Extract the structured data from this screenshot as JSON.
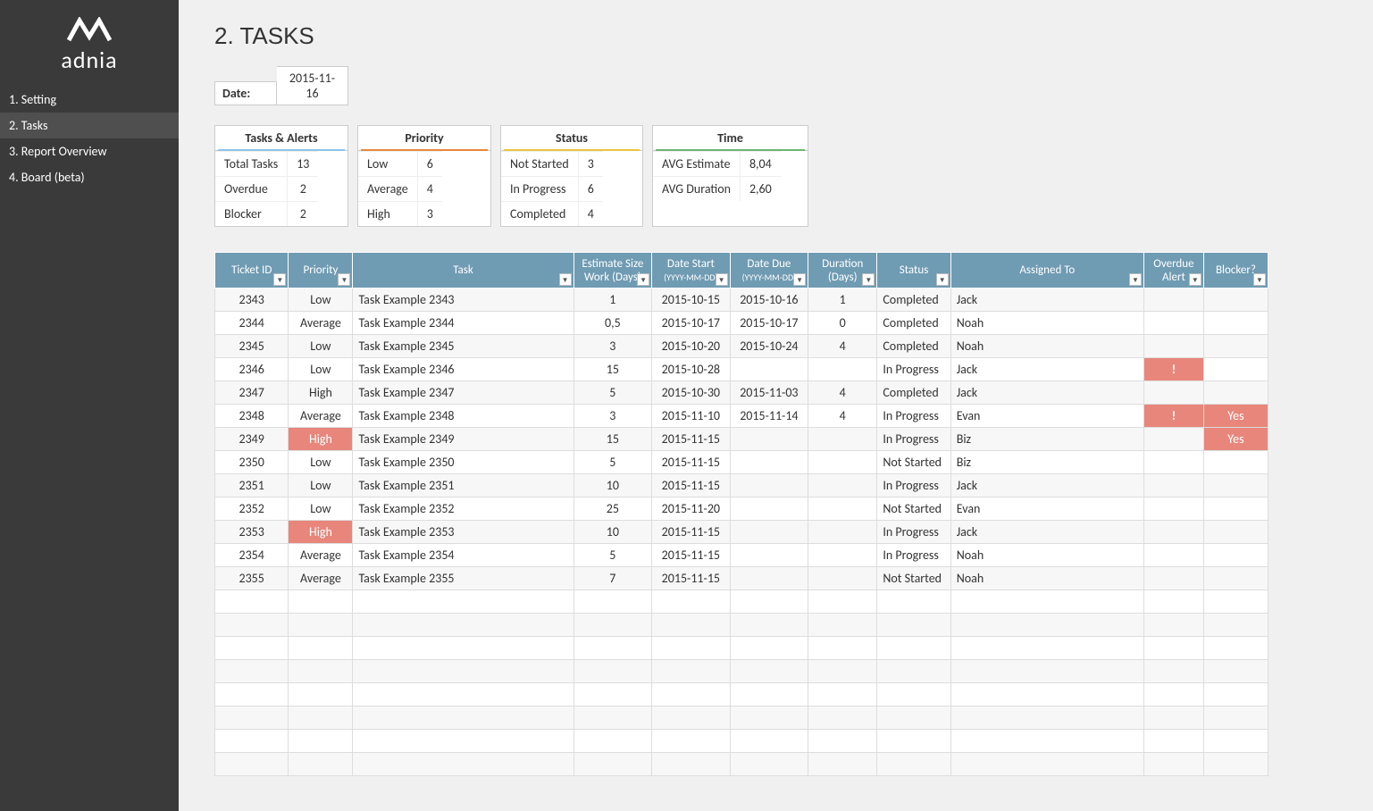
{
  "brand": {
    "mark": "⋈",
    "name": "adnia"
  },
  "nav": [
    {
      "label": "1. Setting",
      "active": false
    },
    {
      "label": "2. Tasks",
      "active": true
    },
    {
      "label": "3. Report Overview",
      "active": false
    },
    {
      "label": "4. Board (beta)",
      "active": false
    }
  ],
  "page_title": "2. TASKS",
  "date": {
    "label": "Date:",
    "value": "2015-11-16"
  },
  "summary": {
    "alerts": {
      "title": "Tasks & Alerts",
      "rows": [
        {
          "label": "Total Tasks",
          "value": "13"
        },
        {
          "label": "Overdue",
          "value": "2"
        },
        {
          "label": "Blocker",
          "value": "2"
        }
      ],
      "accent": "#8fc3e8"
    },
    "priority": {
      "title": "Priority",
      "rows": [
        {
          "label": "Low",
          "value": "6"
        },
        {
          "label": "Average",
          "value": "4"
        },
        {
          "label": "High",
          "value": "3"
        }
      ],
      "accent": "#e8873c"
    },
    "status": {
      "title": "Status",
      "rows": [
        {
          "label": "Not Started",
          "value": "3"
        },
        {
          "label": "In Progress",
          "value": "6"
        },
        {
          "label": "Completed",
          "value": "4"
        }
      ],
      "accent": "#e8c43c"
    },
    "time": {
      "title": "Time",
      "rows": [
        {
          "label": "AVG Estimate",
          "value": "8,04"
        },
        {
          "label": "AVG Duration",
          "value": "2,60"
        }
      ],
      "accent": "#6fb36f"
    }
  },
  "table": {
    "header_bg": "#6f9bb3",
    "highlight_bg": "#e8867c",
    "columns": [
      {
        "key": "ticket",
        "label": "Ticket ID",
        "sub": "",
        "cls": "col-ticket c-center"
      },
      {
        "key": "priority",
        "label": "Priority",
        "sub": "",
        "cls": "col-priority c-center"
      },
      {
        "key": "task",
        "label": "Task",
        "sub": "",
        "cls": "col-task c-left"
      },
      {
        "key": "est",
        "label": "Estimate Size Work (Days)",
        "sub": "",
        "cls": "col-est c-center"
      },
      {
        "key": "start",
        "label": "Date Start",
        "sub": "(YYYY-MM-DD)",
        "cls": "col-start c-center"
      },
      {
        "key": "due",
        "label": "Date Due",
        "sub": "(YYYY-MM-DD)",
        "cls": "col-due c-center"
      },
      {
        "key": "dur",
        "label": "Duration (Days)",
        "sub": "",
        "cls": "col-dur c-center"
      },
      {
        "key": "status",
        "label": "Status",
        "sub": "",
        "cls": "col-status c-left"
      },
      {
        "key": "assigned",
        "label": "Assigned To",
        "sub": "",
        "cls": "col-assigned c-left"
      },
      {
        "key": "overdue",
        "label": "Overdue Alert",
        "sub": "",
        "cls": "col-overdue c-center"
      },
      {
        "key": "blocker",
        "label": "Blocker?",
        "sub": "",
        "cls": "col-blocker c-center"
      }
    ],
    "rows": [
      {
        "ticket": "2343",
        "priority": "Low",
        "task": "Task Example 2343",
        "est": "1",
        "start": "2015-10-15",
        "due": "2015-10-16",
        "dur": "1",
        "status": "Completed",
        "assigned": "Jack",
        "overdue": "",
        "blocker": ""
      },
      {
        "ticket": "2344",
        "priority": "Average",
        "task": "Task Example 2344",
        "est": "0,5",
        "start": "2015-10-17",
        "due": "2015-10-17",
        "dur": "0",
        "status": "Completed",
        "assigned": "Noah",
        "overdue": "",
        "blocker": ""
      },
      {
        "ticket": "2345",
        "priority": "Low",
        "task": "Task Example 2345",
        "est": "3",
        "start": "2015-10-20",
        "due": "2015-10-24",
        "dur": "4",
        "status": "Completed",
        "assigned": "Noah",
        "overdue": "",
        "blocker": ""
      },
      {
        "ticket": "2346",
        "priority": "Low",
        "task": "Task Example 2346",
        "est": "15",
        "start": "2015-10-28",
        "due": "",
        "dur": "",
        "status": "In Progress",
        "assigned": "Jack",
        "overdue": "!",
        "blocker": ""
      },
      {
        "ticket": "2347",
        "priority": "High",
        "task": "Task Example 2347",
        "est": "5",
        "start": "2015-10-30",
        "due": "2015-11-03",
        "dur": "4",
        "status": "Completed",
        "assigned": "Jack",
        "overdue": "",
        "blocker": ""
      },
      {
        "ticket": "2348",
        "priority": "Average",
        "task": "Task Example 2348",
        "est": "3",
        "start": "2015-11-10",
        "due": "2015-11-14",
        "dur": "4",
        "status": "In Progress",
        "assigned": "Evan",
        "overdue": "!",
        "blocker": "Yes"
      },
      {
        "ticket": "2349",
        "priority": "High",
        "priority_hl": true,
        "task": "Task Example 2349",
        "est": "15",
        "start": "2015-11-15",
        "due": "",
        "dur": "",
        "status": "In Progress",
        "assigned": "Biz",
        "overdue": "",
        "blocker": "Yes"
      },
      {
        "ticket": "2350",
        "priority": "Low",
        "task": "Task Example 2350",
        "est": "5",
        "start": "2015-11-15",
        "due": "",
        "dur": "",
        "status": "Not Started",
        "assigned": "Biz",
        "overdue": "",
        "blocker": ""
      },
      {
        "ticket": "2351",
        "priority": "Low",
        "task": "Task Example 2351",
        "est": "10",
        "start": "2015-11-15",
        "due": "",
        "dur": "",
        "status": "In Progress",
        "assigned": "Jack",
        "overdue": "",
        "blocker": ""
      },
      {
        "ticket": "2352",
        "priority": "Low",
        "task": "Task Example 2352",
        "est": "25",
        "start": "2015-11-20",
        "due": "",
        "dur": "",
        "status": "Not Started",
        "assigned": "Evan",
        "overdue": "",
        "blocker": ""
      },
      {
        "ticket": "2353",
        "priority": "High",
        "priority_hl": true,
        "task": "Task Example 2353",
        "est": "10",
        "start": "2015-11-15",
        "due": "",
        "dur": "",
        "status": "In Progress",
        "assigned": "Jack",
        "overdue": "",
        "blocker": ""
      },
      {
        "ticket": "2354",
        "priority": "Average",
        "task": "Task Example 2354",
        "est": "5",
        "start": "2015-11-15",
        "due": "",
        "dur": "",
        "status": "In Progress",
        "assigned": "Noah",
        "overdue": "",
        "blocker": ""
      },
      {
        "ticket": "2355",
        "priority": "Average",
        "task": "Task Example 2355",
        "est": "7",
        "start": "2015-11-15",
        "due": "",
        "dur": "",
        "status": "Not Started",
        "assigned": "Noah",
        "overdue": "",
        "blocker": ""
      }
    ],
    "empty_rows": 8
  }
}
